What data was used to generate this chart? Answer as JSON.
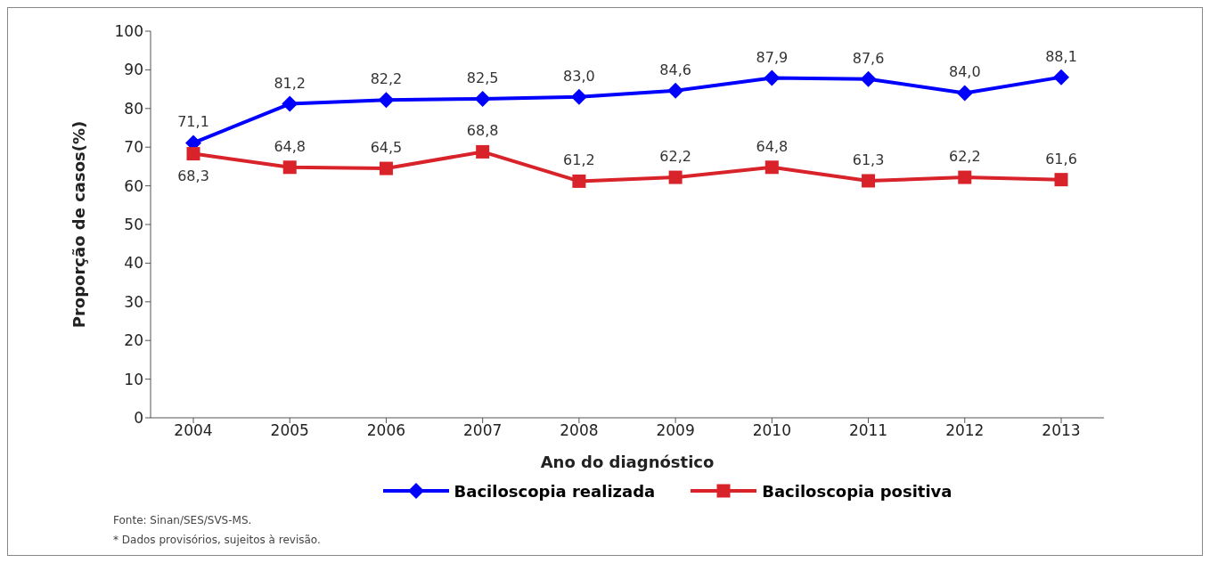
{
  "chart_data": {
    "type": "line",
    "xlabel": "Ano do diagnóstico",
    "ylabel": "Proporção de casos(%)",
    "categories": [
      "2004",
      "2005",
      "2006",
      "2007",
      "2008",
      "2009",
      "2010",
      "2011",
      "2012",
      "2013"
    ],
    "series": [
      {
        "name": "Baciloscopia realizada",
        "color": "#0000ff",
        "marker": "diamond",
        "values": [
          71.1,
          81.2,
          82.2,
          82.5,
          83.0,
          84.6,
          87.9,
          87.6,
          84.0,
          88.1
        ],
        "value_labels": [
          "71,1",
          "81,2",
          "82,2",
          "82,5",
          "83,0",
          "84,6",
          "87,9",
          "87,6",
          "84,0",
          "88,1"
        ]
      },
      {
        "name": "Baciloscopia positiva",
        "color": "#d9232a",
        "marker": "square",
        "values": [
          68.3,
          64.8,
          64.5,
          68.8,
          61.2,
          62.2,
          64.8,
          61.3,
          62.2,
          61.6
        ],
        "value_labels": [
          "68,3",
          "64,8",
          "64,5",
          "68,8",
          "61,2",
          "62,2",
          "64,8",
          "61,3",
          "62,2",
          "61,6"
        ]
      }
    ],
    "ylim": [
      0,
      100
    ],
    "yticks": [
      0,
      10,
      20,
      30,
      40,
      50,
      60,
      70,
      80,
      90,
      100
    ],
    "grid": false,
    "legend": "bottom",
    "annotations": [
      "Fonte: Sinan/SES/SVS-MS.",
      "* Dados provisórios, sujeitos à revisão."
    ]
  }
}
